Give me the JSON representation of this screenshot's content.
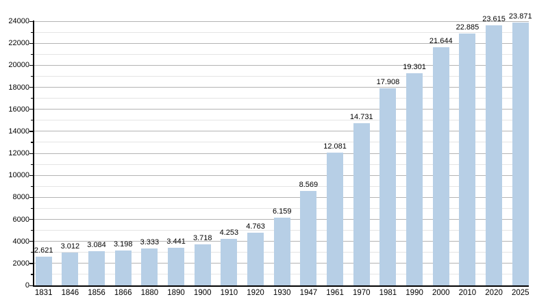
{
  "chart_data": {
    "type": "bar",
    "title": "",
    "xlabel": "",
    "ylabel": "",
    "categories": [
      "1831",
      "1846",
      "1856",
      "1866",
      "1880",
      "1890",
      "1900",
      "1910",
      "1920",
      "1930",
      "1947",
      "1961",
      "1970",
      "1981",
      "1990",
      "2000",
      "2010",
      "2020",
      "2025"
    ],
    "values": [
      2621,
      3012,
      3084,
      3198,
      3333,
      3441,
      3718,
      4253,
      4763,
      6159,
      8569,
      12081,
      14731,
      17908,
      19301,
      21644,
      22885,
      23615,
      23871
    ],
    "value_labels": [
      "2.621",
      "3.012",
      "3.084",
      "3.198",
      "3.333",
      "3.441",
      "3.718",
      "4.253",
      "4.763",
      "6.159",
      "8.569",
      "12.081",
      "14.731",
      "17.908",
      "19.301",
      "21.644",
      "22.885",
      "23.615",
      "23.871"
    ],
    "ylim": [
      0,
      24000
    ],
    "y_major_step": 2000,
    "y_minor_step": 1000,
    "y_tick_labels": [
      "0",
      "2000",
      "4000",
      "6000",
      "8000",
      "10000",
      "12000",
      "14000",
      "16000",
      "18000",
      "20000",
      "22000",
      "24000"
    ],
    "grid": true,
    "legend": false,
    "colors": {
      "bar_fill": "#b7cfe6",
      "grid_major": "#b3b3b3",
      "grid_minor": "#e4e4e4",
      "axis": "#000000",
      "text": "#000000",
      "background": "#ffffff"
    }
  }
}
